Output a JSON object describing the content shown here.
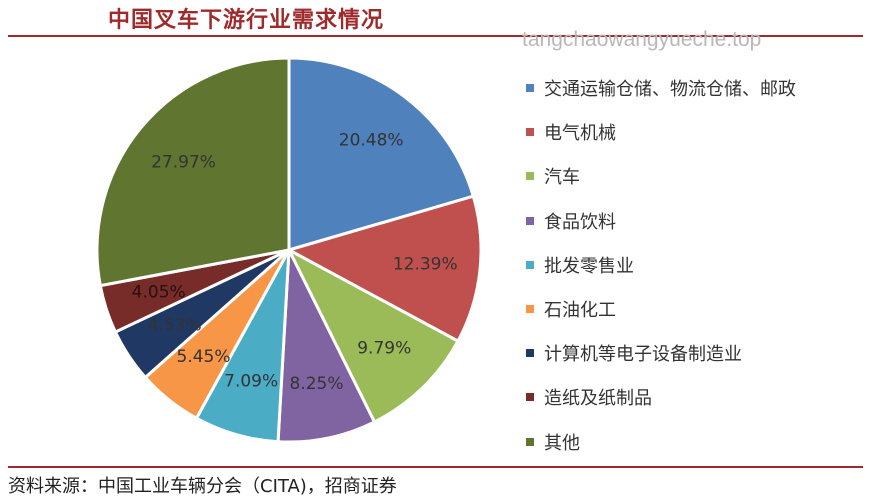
{
  "header": {
    "title": "中国叉车下游行业需求情况"
  },
  "watermark": {
    "text": "tangchaowangyueche.top"
  },
  "chart_data": {
    "type": "pie",
    "title": "中国叉车下游行业需求情况",
    "legend_position": "right",
    "slices": [
      {
        "name": "交通运输仓储、物流仓储、邮政",
        "value": 20.48,
        "label": "20.48%",
        "color": "#4f81bd"
      },
      {
        "name": "电气机械",
        "value": 12.39,
        "label": "12.39%",
        "color": "#c0504d"
      },
      {
        "name": "汽车",
        "value": 9.79,
        "label": "9.79%",
        "color": "#9bbb59"
      },
      {
        "name": "食品饮料",
        "value": 8.25,
        "label": "8.25%",
        "color": "#8064a2"
      },
      {
        "name": "批发零售业",
        "value": 7.09,
        "label": "7.09%",
        "color": "#4bacc6"
      },
      {
        "name": "石油化工",
        "value": 5.45,
        "label": "5.45%",
        "color": "#f79646"
      },
      {
        "name": "计算机等电子设备制造业",
        "value": 4.53,
        "label": "4.53%",
        "color": "#1f3864"
      },
      {
        "name": "造纸及纸制品",
        "value": 4.05,
        "label": "4.05%",
        "color": "#772c2a"
      },
      {
        "name": "其他",
        "value": 27.97,
        "label": "27.97%",
        "color": "#5f7530"
      }
    ]
  },
  "footer": {
    "source": "资料来源：中国工业车辆分会（CITA)，招商证券"
  }
}
